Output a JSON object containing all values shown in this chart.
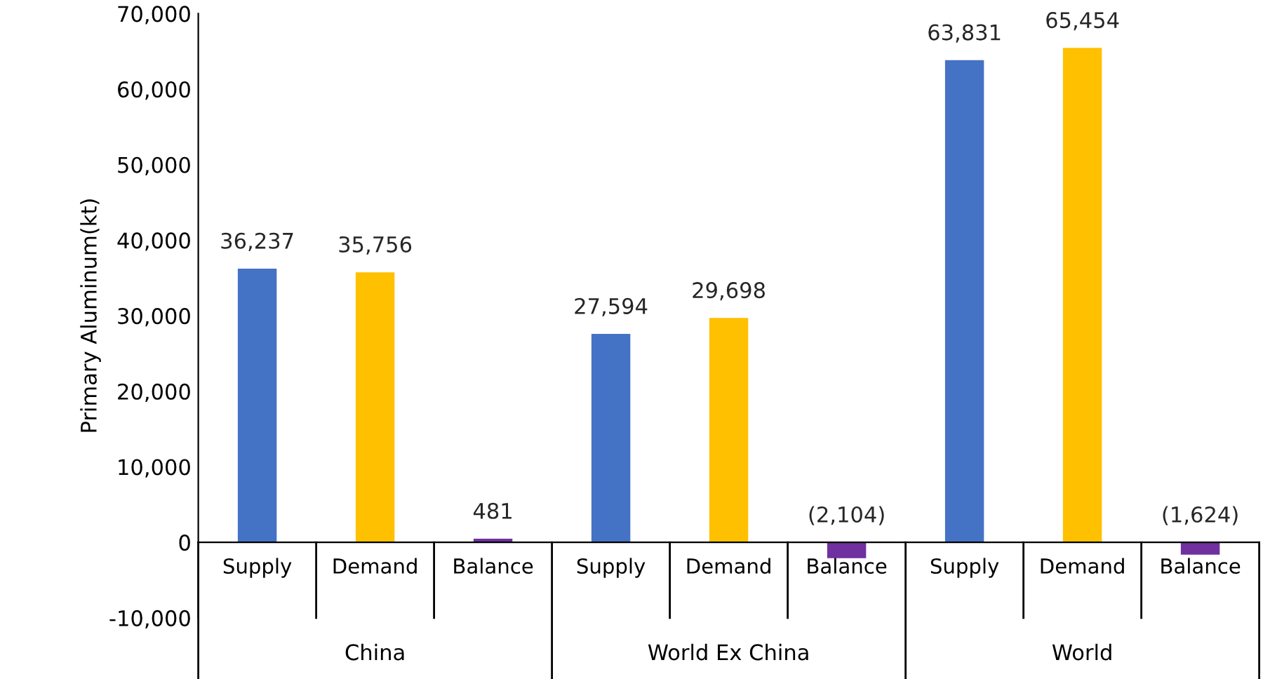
{
  "chart_data": {
    "type": "bar",
    "ylabel": "Primary Aluminum(kt)",
    "categories": [
      "Supply",
      "Demand",
      "Balance",
      "Supply",
      "Demand",
      "Balance",
      "Supply",
      "Demand",
      "Balance"
    ],
    "values": [
      36237,
      35756,
      481,
      27594,
      29698,
      -2104,
      63831,
      65454,
      -1624
    ],
    "value_labels": [
      "36,237",
      "35,756",
      "481",
      "27,594",
      "29,698",
      "(2,104)",
      "63,831",
      "65,454",
      "(1,624)"
    ],
    "colors": [
      "#4472c4",
      "#ffc000",
      "#7030a0",
      "#4472c4",
      "#ffc000",
      "#7030a0",
      "#4472c4",
      "#ffc000",
      "#7030a0"
    ],
    "annotations": [
      "China",
      "World Ex China",
      "World"
    ],
    "ylim": [
      -10000,
      70000
    ],
    "yticks": [
      {
        "value": -10000,
        "label": "-10,000"
      },
      {
        "value": 0,
        "label": "0"
      },
      {
        "value": 10000,
        "label": "10,000"
      },
      {
        "value": 20000,
        "label": "20,000"
      },
      {
        "value": 30000,
        "label": "30,000"
      },
      {
        "value": 40000,
        "label": "40,000"
      },
      {
        "value": 50000,
        "label": "50,000"
      },
      {
        "value": 60000,
        "label": "60,000"
      },
      {
        "value": 70000,
        "label": "70,000"
      }
    ],
    "grid": false
  }
}
